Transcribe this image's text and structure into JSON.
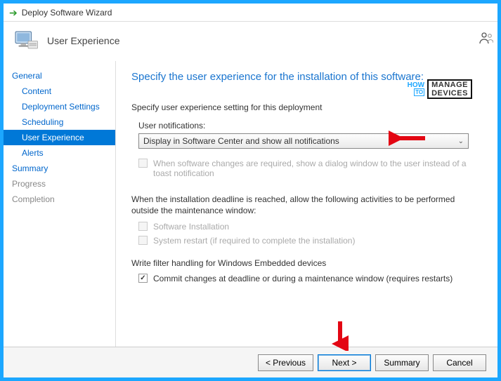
{
  "window": {
    "title": "Deploy Software Wizard"
  },
  "header": {
    "page_name": "User Experience"
  },
  "nav": {
    "items": [
      {
        "label": "General",
        "indent": false,
        "selected": false,
        "disabled": false
      },
      {
        "label": "Content",
        "indent": true,
        "selected": false,
        "disabled": false
      },
      {
        "label": "Deployment Settings",
        "indent": true,
        "selected": false,
        "disabled": false
      },
      {
        "label": "Scheduling",
        "indent": true,
        "selected": false,
        "disabled": false
      },
      {
        "label": "User Experience",
        "indent": true,
        "selected": true,
        "disabled": false
      },
      {
        "label": "Alerts",
        "indent": true,
        "selected": false,
        "disabled": false
      },
      {
        "label": "Summary",
        "indent": false,
        "selected": false,
        "disabled": false
      },
      {
        "label": "Progress",
        "indent": false,
        "selected": false,
        "disabled": true
      },
      {
        "label": "Completion",
        "indent": false,
        "selected": false,
        "disabled": true
      }
    ]
  },
  "content": {
    "title": "Specify the user experience for the installation of this software:",
    "section_label": "Specify user experience setting for this deployment",
    "user_notifications_label": "User notifications:",
    "dropdown_value": "Display in Software Center and show all notifications",
    "cb_dialog": {
      "label": "When software changes are required, show a dialog window to the user instead of a toast notification",
      "enabled": false,
      "checked": false
    },
    "deadline_paragraph": "When the installation deadline is reached, allow the following activities to be performed outside the maintenance window:",
    "cb_install": {
      "label": "Software Installation",
      "enabled": false,
      "checked": false
    },
    "cb_restart": {
      "label": "System restart  (if required to complete the installation)",
      "enabled": false,
      "checked": false
    },
    "embedded_label": "Write filter handling for Windows Embedded devices",
    "cb_commit": {
      "label": "Commit changes at deadline or during a maintenance window (requires restarts)",
      "enabled": true,
      "checked": true
    }
  },
  "footer": {
    "previous": "<  Previous",
    "next": "Next  >",
    "summary": "Summary",
    "cancel": "Cancel"
  },
  "brand": {
    "how": "HOW",
    "to": "TO",
    "manage": "MANAGE",
    "devices": "DEVICES"
  },
  "colors": {
    "frame": "#1ca7ff",
    "link": "#0066cc",
    "selected_bg": "#0078d7",
    "title_blue": "#1a75cf",
    "arrow_red": "#e30613"
  }
}
